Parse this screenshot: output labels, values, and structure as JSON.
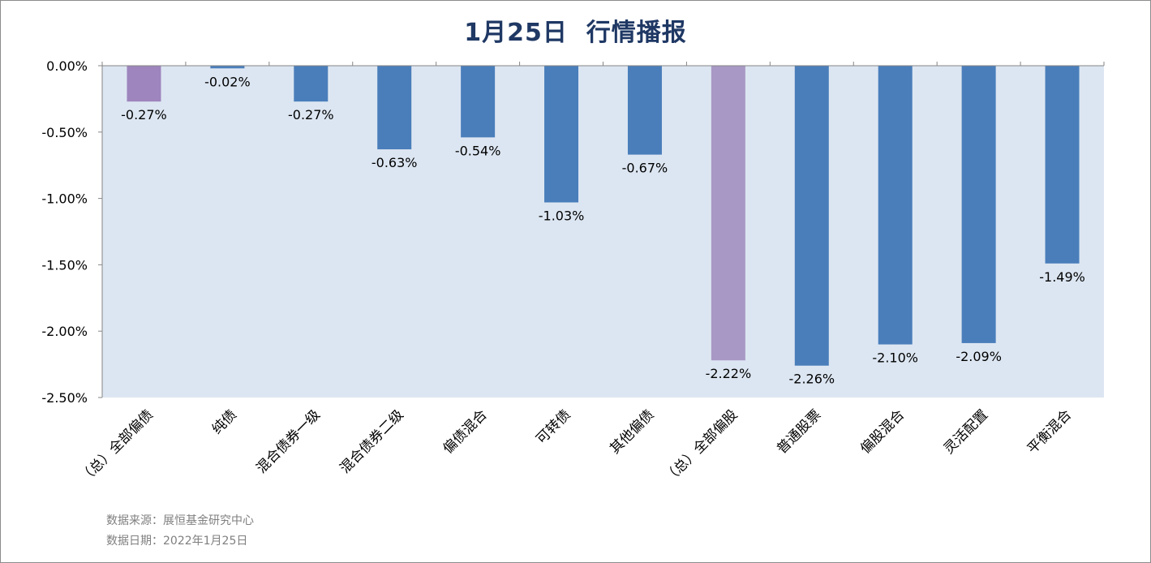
{
  "title": {
    "date": "1月25日",
    "text": "行情播报"
  },
  "chart_data": {
    "type": "bar",
    "categories": [
      "（总）全部偏债",
      "纯债",
      "混合债券一级",
      "混合债券二级",
      "偏债混合",
      "可转债",
      "其他偏债",
      "（总）全部偏股",
      "普通股票",
      "偏股混合",
      "灵活配置",
      "平衡混合"
    ],
    "values": [
      -0.27,
      -0.02,
      -0.27,
      -0.63,
      -0.54,
      -1.03,
      -0.67,
      -2.22,
      -2.26,
      -2.1,
      -2.09,
      -1.49
    ],
    "value_labels": [
      "-0.27%",
      "-0.02%",
      "-0.27%",
      "-0.63%",
      "-0.54%",
      "-1.03%",
      "-0.67%",
      "-2.22%",
      "-2.26%",
      "-2.10%",
      "-2.09%",
      "-1.49%"
    ],
    "bar_colors": [
      "#9e85bd",
      "#4a7ebb",
      "#4a7ebb",
      "#4a7ebb",
      "#4a7ebb",
      "#4a7ebb",
      "#4a7ebb",
      "#a898c5",
      "#4a7ebb",
      "#4a7ebb",
      "#4a7ebb",
      "#4a7ebb"
    ],
    "ylim": [
      -2.5,
      0
    ],
    "yticks": [
      0,
      -0.5,
      -1.0,
      -1.5,
      -2.0,
      -2.5
    ],
    "ytick_labels": [
      "0.00%",
      "-0.50%",
      "-1.00%",
      "-1.50%",
      "-2.00%",
      "-2.50%"
    ],
    "plot_background": "#dce6f2",
    "grid": false,
    "legend": "none"
  },
  "footer": {
    "source": "数据来源：展恒基金研究中心",
    "date": "数据日期：2022年1月25日"
  }
}
